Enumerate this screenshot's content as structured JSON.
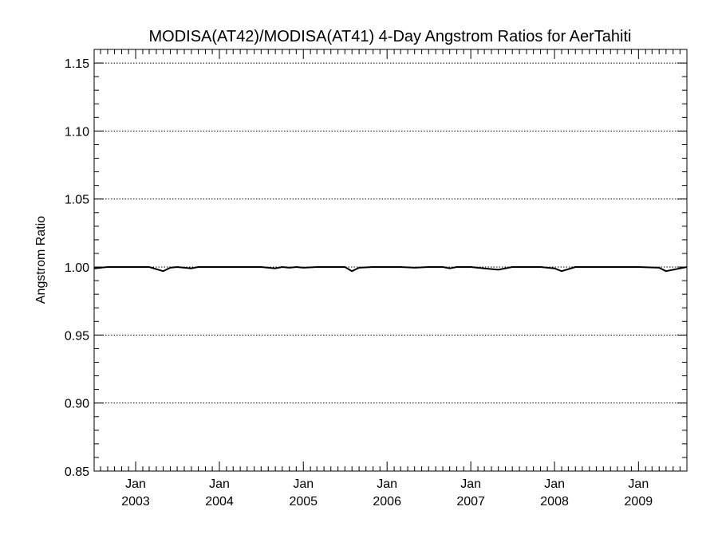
{
  "chart_data": {
    "type": "line",
    "title": "MODISA(AT42)/MODISA(AT41) 4-Day Angstrom Ratios for AerTahiti",
    "xlabel": "",
    "ylabel": "Angstrom Ratio",
    "ylim": [
      0.85,
      1.16
    ],
    "xlim": [
      "2002-07-04",
      "2009-07-31"
    ],
    "y_ticks": [
      "0.85",
      "0.90",
      "0.95",
      "1.00",
      "1.05",
      "1.10",
      "1.15"
    ],
    "x_ticks": [
      {
        "month": "Jan",
        "year": "2003",
        "date": "2003-01-01"
      },
      {
        "month": "Jan",
        "year": "2004",
        "date": "2004-01-01"
      },
      {
        "month": "Jan",
        "year": "2005",
        "date": "2005-01-01"
      },
      {
        "month": "Jan",
        "year": "2006",
        "date": "2006-01-01"
      },
      {
        "month": "Jan",
        "year": "2007",
        "date": "2007-01-01"
      },
      {
        "month": "Jan",
        "year": "2008",
        "date": "2008-01-01"
      },
      {
        "month": "Jan",
        "year": "2009",
        "date": "2009-01-01"
      }
    ],
    "grid": "dotted horizontal at major y ticks",
    "series": [
      {
        "x": [
          "2002-07-04",
          "2002-09-01",
          "2002-11-01",
          "2003-01-01",
          "2003-03-01",
          "2003-05-01",
          "2003-06-01",
          "2003-07-01",
          "2003-09-01",
          "2003-10-01",
          "2003-11-01",
          "2004-01-01",
          "2004-03-01",
          "2004-05-01",
          "2004-07-01",
          "2004-09-01",
          "2004-10-01",
          "2004-11-01",
          "2004-12-01",
          "2005-01-01",
          "2005-03-01",
          "2005-05-01",
          "2005-07-01",
          "2005-08-01",
          "2005-09-01",
          "2005-11-01",
          "2006-01-01",
          "2006-03-01",
          "2006-05-01",
          "2006-07-01",
          "2006-09-01",
          "2006-10-01",
          "2006-11-01",
          "2007-01-01",
          "2007-03-01",
          "2007-05-01",
          "2007-07-01",
          "2007-09-01",
          "2007-11-01",
          "2008-01-01",
          "2008-02-01",
          "2008-04-01",
          "2008-06-01",
          "2008-07-01",
          "2008-09-01",
          "2008-11-01",
          "2009-01-01",
          "2009-04-01",
          "2009-05-01",
          "2009-07-31"
        ],
        "y": [
          0.999,
          1.0,
          1.0,
          1.0,
          1.0,
          0.997,
          0.9995,
          1.0,
          0.999,
          1.0,
          1.0,
          1.0,
          1.0,
          1.0,
          1.0,
          0.999,
          1.0,
          0.9995,
          1.0,
          0.9995,
          1.0,
          1.0,
          1.0,
          0.997,
          0.9995,
          1.0,
          1.0,
          1.0,
          0.9995,
          1.0,
          1.0,
          0.999,
          1.0,
          1.0,
          0.999,
          0.998,
          1.0,
          1.0,
          1.0,
          0.999,
          0.997,
          1.0,
          1.0,
          1.0,
          1.0,
          1.0,
          1.0,
          0.9995,
          0.997,
          1.0
        ]
      }
    ]
  }
}
